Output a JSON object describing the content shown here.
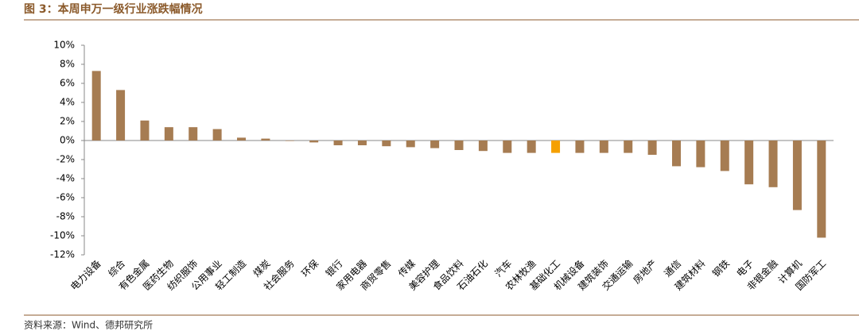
{
  "chart_data": {
    "type": "bar",
    "title": "图 3：本周申万一级行业涨跌幅情况",
    "source": "资料来源：Wind、德邦研究所",
    "categories": [
      "电力设备",
      "综合",
      "有色金属",
      "医药生物",
      "纺织服饰",
      "公用事业",
      "轻工制造",
      "煤炭",
      "社会服务",
      "环保",
      "银行",
      "家用电器",
      "商贸零售",
      "传媒",
      "美容护理",
      "食品饮料",
      "石油石化",
      "汽车",
      "农林牧渔",
      "基础化工",
      "机械设备",
      "建筑装饰",
      "交通运输",
      "房地产",
      "通信",
      "建筑材料",
      "钢铁",
      "电子",
      "非银金融",
      "计算机",
      "国防军工"
    ],
    "values": [
      7.3,
      5.3,
      2.1,
      1.4,
      1.4,
      1.2,
      0.3,
      0.2,
      -0.05,
      -0.2,
      -0.5,
      -0.5,
      -0.6,
      -0.7,
      -0.8,
      -1.0,
      -1.1,
      -1.3,
      -1.3,
      -1.3,
      -1.3,
      -1.3,
      -1.3,
      -1.5,
      -2.7,
      -2.8,
      -3.2,
      -4.6,
      -4.9,
      -7.3,
      -10.2
    ],
    "colors": [
      "#a67c52",
      "#a67c52",
      "#a67c52",
      "#a67c52",
      "#a67c52",
      "#a67c52",
      "#a67c52",
      "#a67c52",
      "#a67c52",
      "#a67c52",
      "#a67c52",
      "#a67c52",
      "#a67c52",
      "#a67c52",
      "#a67c52",
      "#a67c52",
      "#a67c52",
      "#a67c52",
      "#a67c52",
      "#f5a000",
      "#a67c52",
      "#a67c52",
      "#a67c52",
      "#a67c52",
      "#a67c52",
      "#a67c52",
      "#a67c52",
      "#a67c52",
      "#a67c52",
      "#a67c52",
      "#a67c52"
    ],
    "ylim": [
      -12,
      10
    ],
    "yticks": [
      {
        "value": -12,
        "label": "-12%"
      },
      {
        "value": -10,
        "label": "-10%"
      },
      {
        "value": -8,
        "label": "-8%"
      },
      {
        "value": -6,
        "label": "-6%"
      },
      {
        "value": -4,
        "label": "-4%"
      },
      {
        "value": -2,
        "label": "-2%"
      },
      {
        "value": 0,
        "label": "0%"
      },
      {
        "value": 2,
        "label": "2%"
      },
      {
        "value": 4,
        "label": "4%"
      },
      {
        "value": 6,
        "label": "6%"
      },
      {
        "value": 8,
        "label": "8%"
      },
      {
        "value": 10,
        "label": "10%"
      }
    ]
  }
}
